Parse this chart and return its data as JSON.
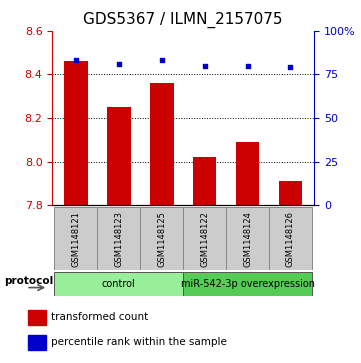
{
  "title": "GDS5367 / ILMN_2157075",
  "samples": [
    "GSM1148121",
    "GSM1148123",
    "GSM1148125",
    "GSM1148122",
    "GSM1148124",
    "GSM1148126"
  ],
  "bar_values": [
    8.46,
    8.25,
    8.36,
    8.02,
    8.09,
    7.91
  ],
  "scatter_values": [
    83,
    81,
    83,
    80,
    80,
    79
  ],
  "ylim_left": [
    7.8,
    8.6
  ],
  "ylim_right": [
    0,
    100
  ],
  "yticks_left": [
    7.8,
    8.0,
    8.2,
    8.4,
    8.6
  ],
  "yticks_right": [
    0,
    25,
    50,
    75,
    100
  ],
  "bar_color": "#cc0000",
  "scatter_color": "#0000cc",
  "bar_bottom": 7.8,
  "groups": [
    {
      "label": "control",
      "indices": [
        0,
        1,
        2
      ],
      "color": "#99ee99"
    },
    {
      "label": "miR-542-3p overexpression",
      "indices": [
        3,
        4,
        5
      ],
      "color": "#55cc55"
    }
  ],
  "protocol_label": "protocol",
  "legend_bar_label": "transformed count",
  "legend_scatter_label": "percentile rank within the sample",
  "dotted_gridlines": [
    8.0,
    8.2,
    8.4
  ],
  "title_fontsize": 11,
  "tick_fontsize": 8,
  "sample_fontsize": 6,
  "legend_fontsize": 7.5
}
